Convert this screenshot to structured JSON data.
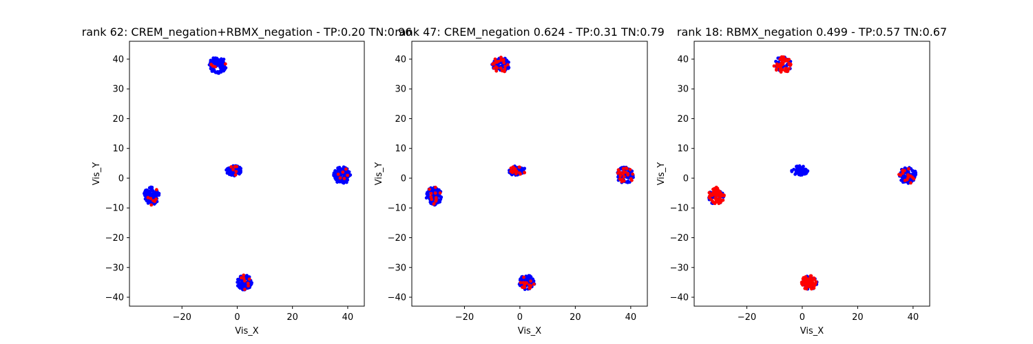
{
  "colors": {
    "class_a": "#0000ff",
    "class_b": "#ff0000"
  },
  "chart_data": [
    {
      "type": "scatter",
      "title": "rank 62: CREM_negation+RBMX_negation - TP:0.20 TN:0.96",
      "xlabel": "Vis_X",
      "ylabel": "Vis_Y",
      "xlim": [
        -39,
        46
      ],
      "ylim": [
        -43,
        46
      ],
      "xticks": [
        -20,
        0,
        20,
        40
      ],
      "yticks": [
        -40,
        -30,
        -20,
        -10,
        0,
        10,
        20,
        30,
        40
      ],
      "grid": false,
      "clusters": [
        {
          "center": [
            -7,
            38
          ],
          "spread": [
            3.2,
            2.8
          ],
          "points": 90,
          "red_fraction": 0.1
        },
        {
          "center": [
            -31,
            -6
          ],
          "spread": [
            2.8,
            3.0
          ],
          "points": 110,
          "red_fraction": 0.03
        },
        {
          "center": [
            -1,
            2.5
          ],
          "spread": [
            3.0,
            1.7
          ],
          "points": 70,
          "red_fraction": 0.12
        },
        {
          "center": [
            38,
            1
          ],
          "spread": [
            3.2,
            2.8
          ],
          "points": 110,
          "red_fraction": 0.04
        },
        {
          "center": [
            2.5,
            -35
          ],
          "spread": [
            2.8,
            2.5
          ],
          "points": 90,
          "red_fraction": 0.15
        }
      ]
    },
    {
      "type": "scatter",
      "title": "rank 47: CREM_negation 0.624 - TP:0.31 TN:0.79",
      "xlabel": "Vis_X",
      "ylabel": "Vis_Y",
      "xlim": [
        -39,
        46
      ],
      "ylim": [
        -43,
        46
      ],
      "xticks": [
        -20,
        0,
        20,
        40
      ],
      "yticks": [
        -40,
        -30,
        -20,
        -10,
        0,
        10,
        20,
        30,
        40
      ],
      "grid": false,
      "clusters": [
        {
          "center": [
            -7,
            38
          ],
          "spread": [
            3.2,
            2.8
          ],
          "points": 90,
          "red_fraction": 0.18
        },
        {
          "center": [
            -31,
            -6
          ],
          "spread": [
            2.8,
            3.0
          ],
          "points": 110,
          "red_fraction": 0.12
        },
        {
          "center": [
            -1,
            2.5
          ],
          "spread": [
            3.0,
            1.7
          ],
          "points": 70,
          "red_fraction": 0.25
        },
        {
          "center": [
            38,
            1
          ],
          "spread": [
            3.2,
            2.8
          ],
          "points": 110,
          "red_fraction": 0.2
        },
        {
          "center": [
            2.5,
            -35
          ],
          "spread": [
            2.8,
            2.5
          ],
          "points": 90,
          "red_fraction": 0.28
        }
      ]
    },
    {
      "type": "scatter",
      "title": "rank 18: RBMX_negation 0.499 - TP:0.57 TN:0.67",
      "xlabel": "Vis_X",
      "ylabel": "Vis_Y",
      "xlim": [
        -39,
        46
      ],
      "ylim": [
        -43,
        46
      ],
      "xticks": [
        -20,
        0,
        20,
        40
      ],
      "yticks": [
        -40,
        -30,
        -20,
        -10,
        0,
        10,
        20,
        30,
        40
      ],
      "grid": false,
      "clusters": [
        {
          "center": [
            -7,
            38
          ],
          "spread": [
            3.2,
            2.8
          ],
          "points": 90,
          "red_fraction": 0.5
        },
        {
          "center": [
            -31,
            -6
          ],
          "spread": [
            2.8,
            3.0
          ],
          "points": 110,
          "red_fraction": 0.55
        },
        {
          "center": [
            -1,
            2.5
          ],
          "spread": [
            3.0,
            1.7
          ],
          "points": 70,
          "red_fraction": 0.05
        },
        {
          "center": [
            38,
            1
          ],
          "spread": [
            3.2,
            2.8
          ],
          "points": 110,
          "red_fraction": 0.12
        },
        {
          "center": [
            2.5,
            -35
          ],
          "spread": [
            2.8,
            2.5
          ],
          "points": 90,
          "red_fraction": 0.6
        }
      ]
    }
  ]
}
